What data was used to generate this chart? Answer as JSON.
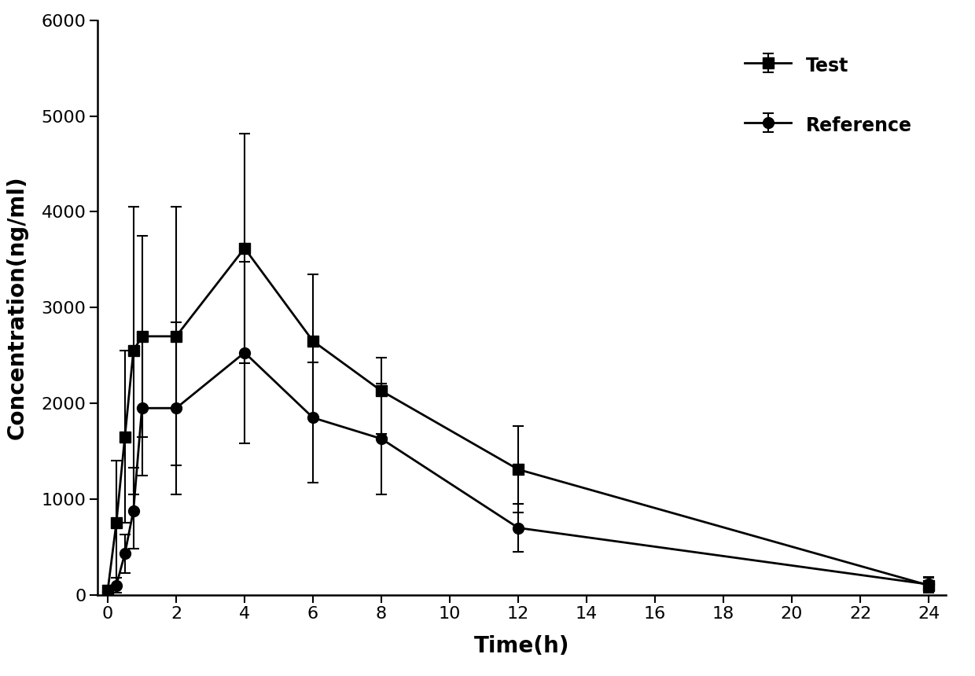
{
  "test_x": [
    0,
    0.25,
    0.5,
    0.75,
    1.0,
    2.0,
    4.0,
    6.0,
    8.0,
    12.0,
    24.0
  ],
  "test_y": [
    50,
    750,
    1650,
    2550,
    2700,
    2700,
    3620,
    2650,
    2130,
    1310,
    100
  ],
  "test_yerr_low": [
    50,
    650,
    900,
    1500,
    1050,
    1350,
    1200,
    800,
    450,
    450,
    80
  ],
  "test_yerr_high": [
    50,
    650,
    900,
    1500,
    1050,
    1350,
    1200,
    700,
    350,
    450,
    80
  ],
  "ref_x": [
    0,
    0.25,
    0.5,
    0.75,
    1.0,
    2.0,
    4.0,
    6.0,
    8.0,
    12.0,
    24.0
  ],
  "ref_y": [
    30,
    100,
    430,
    880,
    1950,
    1950,
    2530,
    1850,
    1630,
    700,
    110
  ],
  "ref_yerr_low": [
    30,
    80,
    200,
    400,
    700,
    900,
    950,
    680,
    580,
    250,
    80
  ],
  "ref_yerr_high": [
    30,
    80,
    200,
    450,
    700,
    900,
    950,
    580,
    580,
    250,
    80
  ],
  "xlabel": "Time(h)",
  "ylabel": "Concentration(ng/ml)",
  "xlim": [
    -0.3,
    24.5
  ],
  "ylim": [
    0,
    6000
  ],
  "xticks": [
    0,
    2,
    4,
    6,
    8,
    10,
    12,
    14,
    16,
    18,
    20,
    22,
    24
  ],
  "yticks": [
    0,
    1000,
    2000,
    3000,
    4000,
    5000,
    6000
  ],
  "legend_labels": [
    "Test",
    "Reference"
  ],
  "bg_color": "#ffffff",
  "line_color": "#000000"
}
